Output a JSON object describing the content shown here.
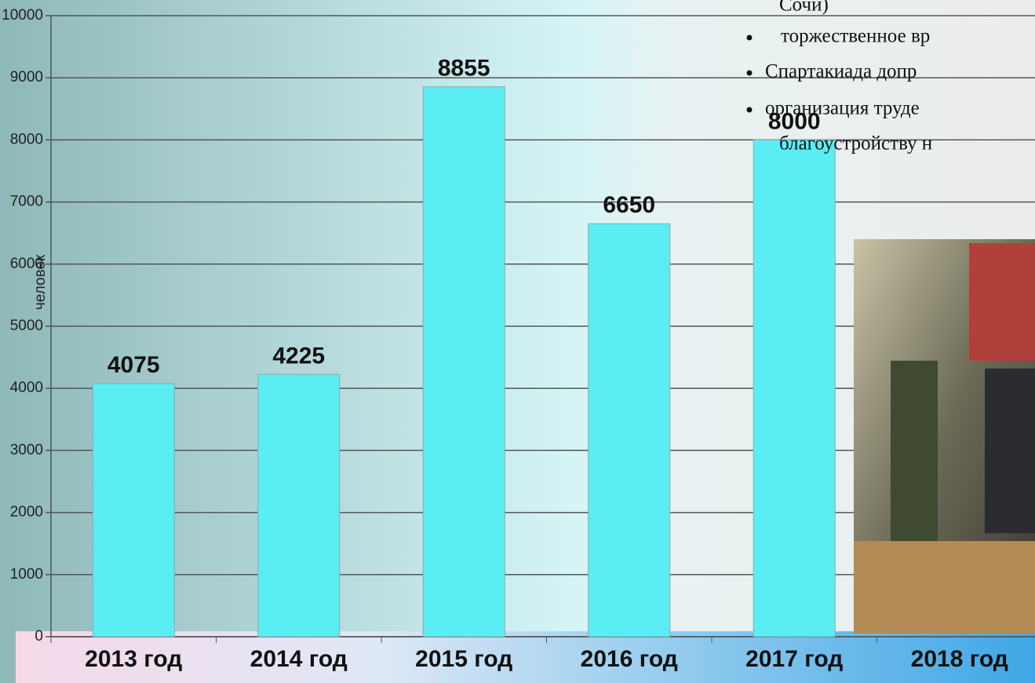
{
  "chart_data": {
    "type": "bar",
    "y_label": "человек",
    "categories": [
      "2013 год",
      "2014 год",
      "2015 год",
      "2016 год",
      "2017 год",
      "2018 год"
    ],
    "values": [
      4075,
      4225,
      8855,
      6650,
      8000,
      null
    ],
    "color": "#5aeef4",
    "ylim": [
      0,
      10000
    ],
    "yticks": [
      0,
      1000,
      2000,
      3000,
      4000,
      5000,
      6000,
      7000,
      8000,
      9000,
      10000
    ],
    "grid": true
  },
  "slide_text": {
    "bullets": [
      "Сочи)",
      "торжественное вр",
      "Спартакиада допр",
      "организация труде",
      "благоустройству  н"
    ]
  }
}
